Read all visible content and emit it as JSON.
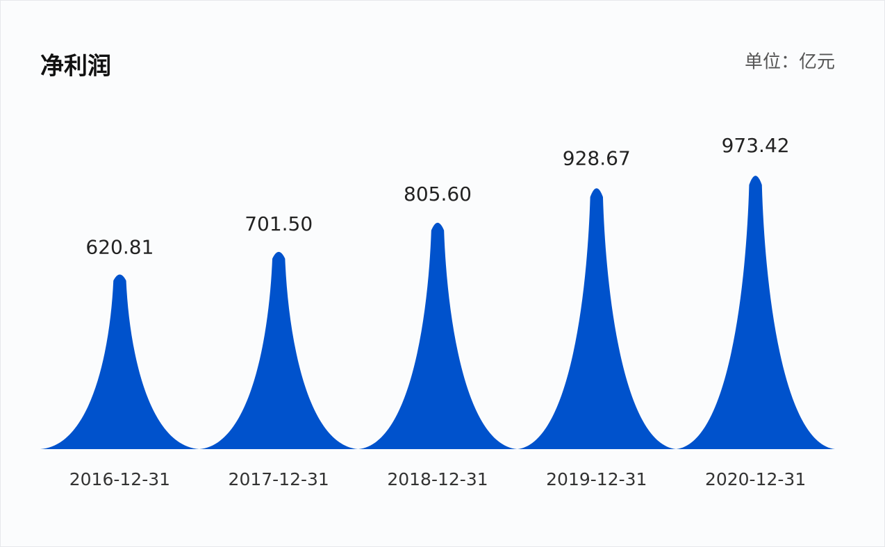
{
  "chart_data": {
    "type": "peak",
    "title": "净利润",
    "unit_label": "单位：亿元",
    "categories": [
      "2016-12-31",
      "2017-12-31",
      "2018-12-31",
      "2019-12-31",
      "2020-12-31"
    ],
    "values": [
      620.81,
      701.5,
      805.6,
      928.67,
      973.42
    ],
    "value_labels": [
      "620.81",
      "701.50",
      "805.60",
      "928.67",
      "973.42"
    ],
    "color": "#0052cc"
  }
}
